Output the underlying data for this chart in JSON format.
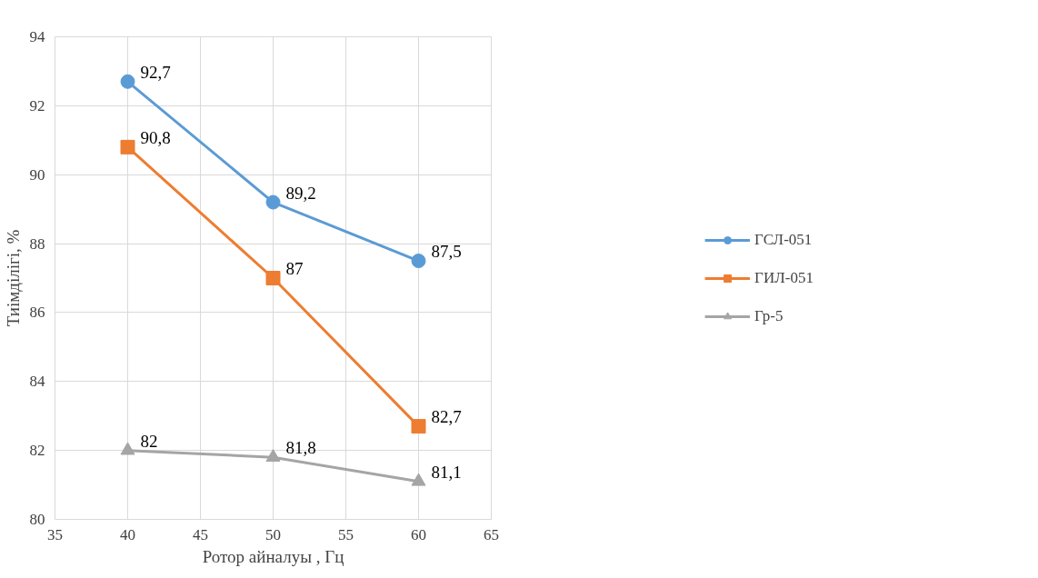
{
  "chart_data": {
    "type": "line",
    "xlabel": "Ротор айналуы , Гц",
    "ylabel": "Тиімділігі, %",
    "x": [
      40,
      50,
      60
    ],
    "series": [
      {
        "name": "ГСЛ-051",
        "color": "#5b9bd5",
        "marker": "circle",
        "values": [
          92.7,
          89.2,
          87.5
        ],
        "value_labels": [
          "92,7",
          "89,2",
          "87,5"
        ]
      },
      {
        "name": "ГИЛ-051",
        "color": "#ed7d31",
        "marker": "square",
        "values": [
          90.8,
          87,
          82.7
        ],
        "value_labels": [
          "90,8",
          "87",
          "82,7"
        ]
      },
      {
        "name": "Гр-5",
        "color": "#a5a5a5",
        "marker": "triangle",
        "values": [
          82,
          81.8,
          81.1
        ],
        "value_labels": [
          "82",
          "81,8",
          "81,1"
        ]
      }
    ],
    "xlim": [
      35,
      65
    ],
    "xticks": [
      35,
      40,
      45,
      50,
      55,
      60,
      65
    ],
    "ylim": [
      80,
      94
    ],
    "yticks": [
      80,
      82,
      84,
      86,
      88,
      90,
      92,
      94
    ],
    "grid": true,
    "legend": "right"
  }
}
